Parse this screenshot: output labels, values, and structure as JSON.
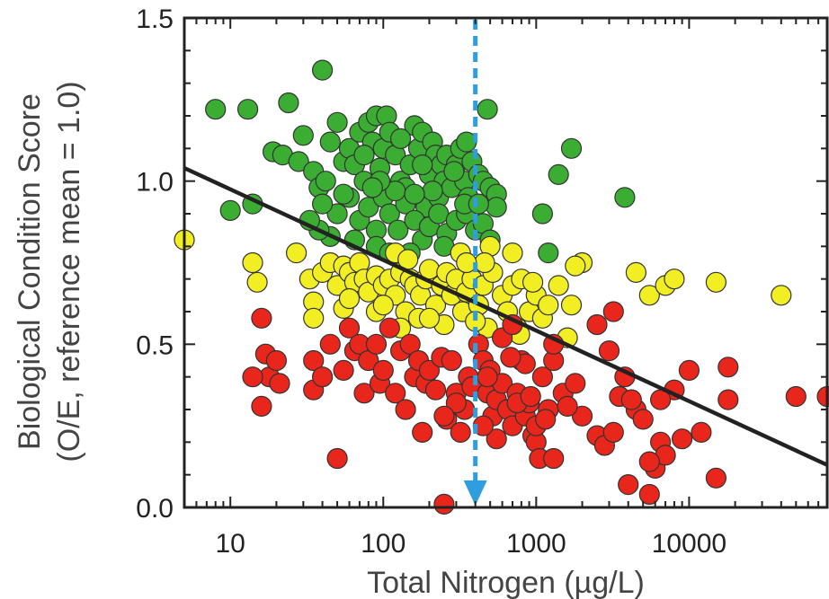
{
  "colors": {
    "green": "#3aad32",
    "yellow": "#f2ee24",
    "red": "#e8261c",
    "trend_line": "#222222",
    "threshold_arrow": "#2f9ee0"
  },
  "chart_data": {
    "type": "scatter",
    "title": "",
    "xlabel": "Total Nitrogen (µg/L)",
    "ylabel_line1": "Biological Condition Score",
    "ylabel_line2": "(O/E, reference mean = 1.0)",
    "x_scale": "log",
    "xlim": [
      5,
      80000
    ],
    "ylim": [
      0.0,
      1.5
    ],
    "x_ticks": [
      {
        "value": 10,
        "label": "10"
      },
      {
        "value": 100,
        "label": "100"
      },
      {
        "value": 1000,
        "label": "1000"
      },
      {
        "value": 10000,
        "label": "10000"
      }
    ],
    "y_ticks": [
      {
        "value": 0.0,
        "label": "0.0"
      },
      {
        "value": 0.5,
        "label": "0.5"
      },
      {
        "value": 1.0,
        "label": "1.0"
      },
      {
        "value": 1.5,
        "label": "1.5"
      }
    ],
    "grid": false,
    "trend_line": {
      "x": [
        5,
        80000
      ],
      "y": [
        1.04,
        0.13
      ]
    },
    "threshold_x": 400,
    "series": [
      {
        "color_key": "green",
        "points": [
          [
            8,
            1.22
          ],
          [
            13,
            1.22
          ],
          [
            24,
            1.24
          ],
          [
            40,
            1.34
          ],
          [
            50,
            1.18
          ],
          [
            10,
            0.91
          ],
          [
            14,
            0.93
          ],
          [
            19,
            1.09
          ],
          [
            22,
            1.08
          ],
          [
            28,
            1.06
          ],
          [
            30,
            1.14
          ],
          [
            35,
            1.03
          ],
          [
            38,
            0.98
          ],
          [
            42,
            1.0
          ],
          [
            45,
            1.12
          ],
          [
            55,
            1.06
          ],
          [
            60,
            1.1
          ],
          [
            65,
            1.05
          ],
          [
            70,
            1.15
          ],
          [
            75,
            1.0
          ],
          [
            80,
            1.18
          ],
          [
            85,
            1.12
          ],
          [
            90,
            1.2
          ],
          [
            95,
            1.04
          ],
          [
            100,
            1.1
          ],
          [
            105,
            1.2
          ],
          [
            110,
            1.15
          ],
          [
            120,
            1.08
          ],
          [
            130,
            1.0
          ],
          [
            140,
            0.98
          ],
          [
            150,
            1.05
          ],
          [
            160,
            1.17
          ],
          [
            170,
            1.1
          ],
          [
            180,
            1.15
          ],
          [
            190,
            0.92
          ],
          [
            200,
            1.02
          ],
          [
            210,
            1.12
          ],
          [
            220,
            1.08
          ],
          [
            230,
            0.95
          ],
          [
            240,
            1.05
          ],
          [
            250,
            1.0
          ],
          [
            260,
            1.08
          ],
          [
            280,
            0.98
          ],
          [
            300,
            1.05
          ],
          [
            320,
            1.1
          ],
          [
            340,
            1.0
          ],
          [
            360,
            0.95
          ],
          [
            380,
            1.06
          ],
          [
            420,
            1.02
          ],
          [
            450,
            1.0
          ],
          [
            500,
            0.98
          ],
          [
            550,
            0.96
          ],
          [
            480,
            1.22
          ],
          [
            1100,
            0.9
          ],
          [
            1400,
            1.02
          ],
          [
            1700,
            1.1
          ],
          [
            3800,
            0.95
          ],
          [
            1200,
            0.78
          ],
          [
            60,
            0.95
          ],
          [
            70,
            0.88
          ],
          [
            80,
            0.92
          ],
          [
            90,
            0.85
          ],
          [
            100,
            0.95
          ],
          [
            110,
            0.9
          ],
          [
            125,
            0.85
          ],
          [
            140,
            0.93
          ],
          [
            160,
            0.88
          ],
          [
            180,
            0.82
          ],
          [
            200,
            0.86
          ],
          [
            230,
            0.9
          ],
          [
            260,
            0.84
          ],
          [
            300,
            0.88
          ],
          [
            350,
            0.9
          ],
          [
            400,
            0.85
          ],
          [
            450,
            0.87
          ],
          [
            500,
            0.82
          ],
          [
            50,
            0.9
          ],
          [
            45,
            0.83
          ],
          [
            38,
            0.85
          ],
          [
            90,
            0.8
          ],
          [
            150,
            0.78
          ],
          [
            65,
            0.82
          ],
          [
            110,
            0.78
          ],
          [
            550,
            0.92
          ],
          [
            40,
            0.93
          ],
          [
            33,
            0.88
          ],
          [
            250,
            0.8
          ],
          [
            120,
            0.97
          ],
          [
            95,
            1.0
          ],
          [
            75,
            1.08
          ],
          [
            55,
            0.96
          ],
          [
            130,
            1.13
          ],
          [
            180,
            1.05
          ],
          [
            210,
            0.97
          ],
          [
            290,
            1.03
          ],
          [
            340,
            0.93
          ],
          [
            420,
            0.93
          ],
          [
            350,
            1.12
          ],
          [
            85,
            0.98
          ],
          [
            160,
            0.96
          ]
        ]
      },
      {
        "color_key": "yellow",
        "points": [
          [
            5,
            0.82
          ],
          [
            14,
            0.75
          ],
          [
            15,
            0.69
          ],
          [
            27,
            0.78
          ],
          [
            33,
            0.7
          ],
          [
            35,
            0.63
          ],
          [
            40,
            0.72
          ],
          [
            45,
            0.75
          ],
          [
            50,
            0.68
          ],
          [
            55,
            0.74
          ],
          [
            60,
            0.72
          ],
          [
            65,
            0.69
          ],
          [
            70,
            0.75
          ],
          [
            75,
            0.7
          ],
          [
            80,
            0.66
          ],
          [
            90,
            0.71
          ],
          [
            100,
            0.68
          ],
          [
            110,
            0.7
          ],
          [
            120,
            0.65
          ],
          [
            130,
            0.72
          ],
          [
            140,
            0.6
          ],
          [
            150,
            0.7
          ],
          [
            160,
            0.68
          ],
          [
            175,
            0.65
          ],
          [
            190,
            0.7
          ],
          [
            200,
            0.73
          ],
          [
            220,
            0.62
          ],
          [
            240,
            0.68
          ],
          [
            260,
            0.72
          ],
          [
            280,
            0.65
          ],
          [
            300,
            0.7
          ],
          [
            330,
            0.6
          ],
          [
            350,
            0.66
          ],
          [
            380,
            0.7
          ],
          [
            420,
            0.62
          ],
          [
            450,
            0.68
          ],
          [
            480,
            0.55
          ],
          [
            500,
            0.8
          ],
          [
            520,
            0.72
          ],
          [
            600,
            0.65
          ],
          [
            650,
            0.6
          ],
          [
            700,
            0.68
          ],
          [
            750,
            0.55
          ],
          [
            800,
            0.7
          ],
          [
            900,
            0.6
          ],
          [
            1000,
            0.65
          ],
          [
            1100,
            0.58
          ],
          [
            1200,
            0.62
          ],
          [
            1400,
            0.68
          ],
          [
            1700,
            0.62
          ],
          [
            2000,
            0.75
          ],
          [
            4500,
            0.72
          ],
          [
            5500,
            0.65
          ],
          [
            7000,
            0.68
          ],
          [
            8000,
            0.7
          ],
          [
            15000,
            0.69
          ],
          [
            40000,
            0.65
          ],
          [
            35,
            0.58
          ],
          [
            55,
            0.61
          ],
          [
            90,
            0.6
          ],
          [
            130,
            0.55
          ],
          [
            170,
            0.58
          ],
          [
            250,
            0.56
          ],
          [
            120,
            0.78
          ],
          [
            320,
            0.78
          ],
          [
            700,
            0.78
          ],
          [
            1800,
            0.74
          ],
          [
            200,
            0.58
          ],
          [
            400,
            0.57
          ],
          [
            1600,
            0.52
          ],
          [
            780,
            0.53
          ],
          [
            100,
            0.62
          ],
          [
            145,
            0.76
          ],
          [
            60,
            0.64
          ],
          [
            460,
            0.75
          ],
          [
            350,
            0.75
          ],
          [
            950,
            0.69
          ]
        ]
      },
      {
        "color_key": "red",
        "points": [
          [
            16,
            0.58
          ],
          [
            17,
            0.47
          ],
          [
            18,
            0.4
          ],
          [
            20,
            0.45
          ],
          [
            14,
            0.4
          ],
          [
            16,
            0.31
          ],
          [
            21,
            0.38
          ],
          [
            35,
            0.45
          ],
          [
            35,
            0.36
          ],
          [
            40,
            0.4
          ],
          [
            45,
            0.5
          ],
          [
            50,
            0.15
          ],
          [
            55,
            0.42
          ],
          [
            60,
            0.55
          ],
          [
            65,
            0.48
          ],
          [
            70,
            0.5
          ],
          [
            75,
            0.35
          ],
          [
            80,
            0.45
          ],
          [
            90,
            0.5
          ],
          [
            95,
            0.38
          ],
          [
            100,
            0.42
          ],
          [
            110,
            0.55
          ],
          [
            120,
            0.35
          ],
          [
            130,
            0.48
          ],
          [
            140,
            0.3
          ],
          [
            150,
            0.5
          ],
          [
            160,
            0.4
          ],
          [
            170,
            0.45
          ],
          [
            180,
            0.23
          ],
          [
            190,
            0.38
          ],
          [
            200,
            0.42
          ],
          [
            220,
            0.36
          ],
          [
            240,
            0.46
          ],
          [
            250,
            0.01
          ],
          [
            260,
            0.27
          ],
          [
            280,
            0.45
          ],
          [
            300,
            0.35
          ],
          [
            320,
            0.23
          ],
          [
            340,
            0.3
          ],
          [
            360,
            0.4
          ],
          [
            380,
            0.37
          ],
          [
            420,
            0.5
          ],
          [
            450,
            0.45
          ],
          [
            480,
            0.35
          ],
          [
            500,
            0.42
          ],
          [
            520,
            0.28
          ],
          [
            550,
            0.33
          ],
          [
            600,
            0.38
          ],
          [
            650,
            0.3
          ],
          [
            700,
            0.25
          ],
          [
            750,
            0.35
          ],
          [
            800,
            0.45
          ],
          [
            850,
            0.28
          ],
          [
            900,
            0.32
          ],
          [
            950,
            0.22
          ],
          [
            1000,
            0.2
          ],
          [
            1050,
            0.15
          ],
          [
            1100,
            0.4
          ],
          [
            1200,
            0.3
          ],
          [
            1300,
            0.45
          ],
          [
            1500,
            0.35
          ],
          [
            1800,
            0.38
          ],
          [
            2000,
            0.28
          ],
          [
            2500,
            0.22
          ],
          [
            2800,
            0.19
          ],
          [
            3000,
            0.48
          ],
          [
            3200,
            0.6
          ],
          [
            3500,
            0.34
          ],
          [
            3800,
            0.4
          ],
          [
            4000,
            0.07
          ],
          [
            4500,
            0.3
          ],
          [
            5000,
            0.27
          ],
          [
            5500,
            0.04
          ],
          [
            6000,
            0.12
          ],
          [
            6500,
            0.2
          ],
          [
            7000,
            0.16
          ],
          [
            8000,
            0.36
          ],
          [
            9000,
            0.21
          ],
          [
            10000,
            0.42
          ],
          [
            12000,
            0.23
          ],
          [
            15000,
            0.09
          ],
          [
            18000,
            0.33
          ],
          [
            18000,
            0.43
          ],
          [
            50000,
            0.34
          ],
          [
            80000,
            0.34
          ],
          [
            2500,
            0.56
          ],
          [
            1300,
            0.5
          ],
          [
            600,
            0.52
          ],
          [
            700,
            0.56
          ],
          [
            550,
            0.21
          ],
          [
            300,
            0.32
          ],
          [
            450,
            0.25
          ],
          [
            1000,
            0.25
          ],
          [
            850,
            0.44
          ],
          [
            1150,
            0.27
          ],
          [
            1600,
            0.31
          ],
          [
            680,
            0.46
          ],
          [
            4200,
            0.33
          ],
          [
            6500,
            0.33
          ],
          [
            3200,
            0.23
          ],
          [
            5500,
            0.14
          ],
          [
            1300,
            0.15
          ],
          [
            250,
            0.28
          ],
          [
            480,
            0.4
          ],
          [
            750,
            0.32
          ],
          [
            920,
            0.34
          ]
        ]
      }
    ]
  }
}
